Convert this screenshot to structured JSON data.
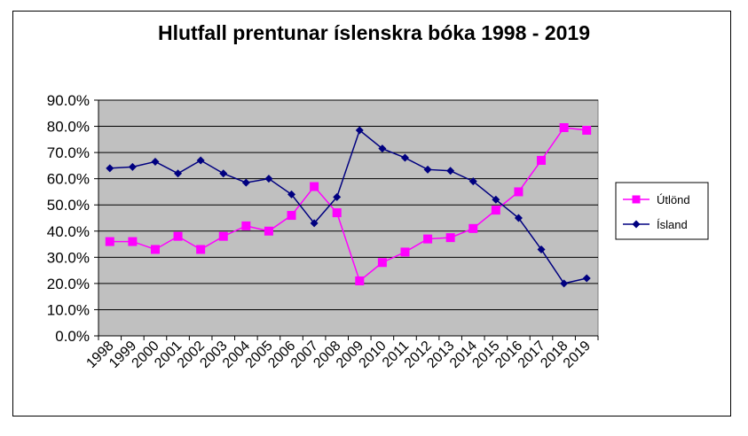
{
  "chart_data": {
    "type": "line",
    "title": "Hlutfall prentunar íslenskra bóka 1998 - 2019",
    "xlabel": "",
    "ylabel": "",
    "ylim": [
      0,
      90
    ],
    "ytick_step": 10,
    "ytick_labels": [
      "0.0%",
      "10.0%",
      "20.0%",
      "30.0%",
      "40.0%",
      "50.0%",
      "60.0%",
      "70.0%",
      "80.0%",
      "90.0%"
    ],
    "categories": [
      "1998",
      "1999",
      "2000",
      "2001",
      "2002",
      "2003",
      "2004",
      "2005",
      "2006",
      "2007",
      "2008",
      "2009",
      "2010",
      "2011",
      "2012",
      "2013",
      "2014",
      "2015",
      "2016",
      "2017",
      "2018",
      "2019"
    ],
    "grid": true,
    "legend_position": "right",
    "series": [
      {
        "name": "Útlönd",
        "color": "#ff00ff",
        "marker": "square",
        "values": [
          36,
          36,
          33,
          38,
          33,
          38,
          42,
          40,
          46,
          57,
          47,
          21,
          28,
          32,
          37,
          37.5,
          41,
          48,
          55,
          67,
          79.5,
          78.5
        ]
      },
      {
        "name": "Ísland",
        "color": "#000080",
        "marker": "diamond",
        "values": [
          64,
          64.5,
          66.5,
          62,
          67,
          62,
          58.5,
          60,
          54,
          43,
          53,
          78.5,
          71.5,
          68,
          63.5,
          63,
          59,
          52,
          45,
          33,
          20,
          22
        ]
      }
    ]
  },
  "colors": {
    "plot_background": "#c0c0c0",
    "grid": "#000000"
  }
}
